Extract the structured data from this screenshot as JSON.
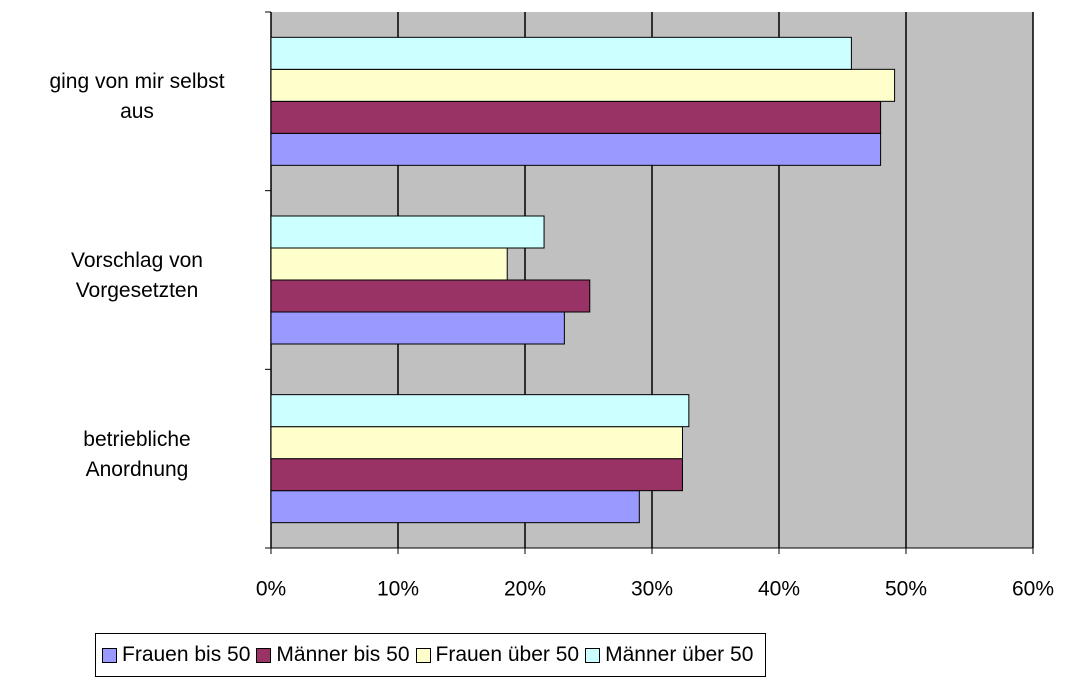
{
  "chart_data": {
    "type": "hbar",
    "categories": [
      "ging von mir selbst\naus",
      "Vorschlag von\nVorgesetzten",
      "betriebliche\nAnordnung"
    ],
    "series": [
      {
        "name": "Frauen bis 50",
        "color": "#9999ff",
        "values": [
          48.0,
          23.1,
          29.0
        ]
      },
      {
        "name": "Männer bis 50",
        "color": "#993366",
        "values": [
          48.0,
          25.1,
          32.4
        ]
      },
      {
        "name": "Frauen über 50",
        "color": "#ffffcc",
        "values": [
          49.1,
          18.6,
          32.4
        ]
      },
      {
        "name": "Männer über 50",
        "color": "#ccffff",
        "values": [
          45.7,
          21.5,
          32.9
        ]
      }
    ],
    "xlim": [
      0,
      60
    ],
    "xticks": [
      {
        "value": 0,
        "label": "0%"
      },
      {
        "value": 10,
        "label": "10%"
      },
      {
        "value": 20,
        "label": "20%"
      },
      {
        "value": 30,
        "label": "30%"
      },
      {
        "value": 40,
        "label": "40%"
      },
      {
        "value": 50,
        "label": "50%"
      },
      {
        "value": 60,
        "label": "60%"
      }
    ],
    "grid": true,
    "legend": "bottom"
  }
}
